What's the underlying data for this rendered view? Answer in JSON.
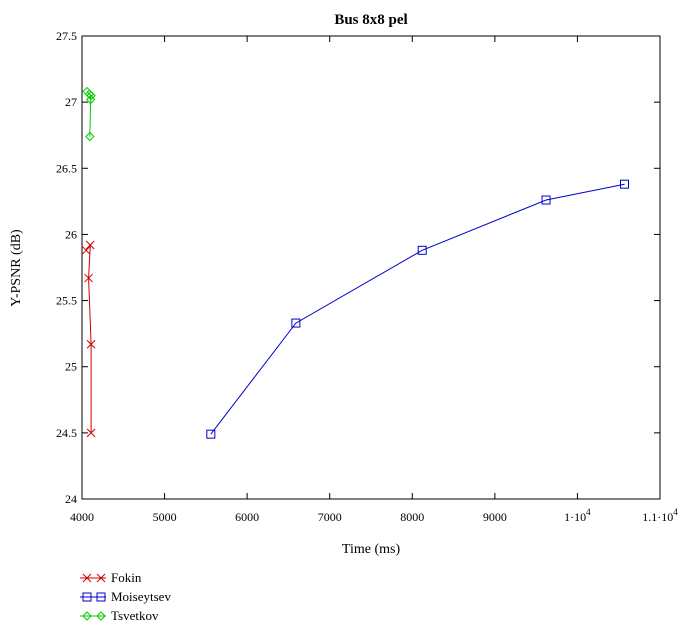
{
  "chart_data": {
    "type": "line",
    "title": "Bus 8x8 pel",
    "xlabel": "Time (ms)",
    "ylabel": "Y-PSNR (dB)",
    "xlim": [
      4000,
      11000
    ],
    "ylim": [
      24,
      27.5
    ],
    "x_ticks": [
      {
        "value": 4000,
        "label": "4000"
      },
      {
        "value": 5000,
        "label": "5000"
      },
      {
        "value": 6000,
        "label": "6000"
      },
      {
        "value": 7000,
        "label": "7000"
      },
      {
        "value": 8000,
        "label": "8000"
      },
      {
        "value": 9000,
        "label": "9000"
      },
      {
        "value": 10000,
        "label": "1·10",
        "sup": "4"
      },
      {
        "value": 11000,
        "label": "1.1·10",
        "sup": "4"
      }
    ],
    "y_ticks": [
      {
        "value": 24,
        "label": "24"
      },
      {
        "value": 24.5,
        "label": "24.5"
      },
      {
        "value": 25,
        "label": "25"
      },
      {
        "value": 25.5,
        "label": "25.5"
      },
      {
        "value": 26,
        "label": "26"
      },
      {
        "value": 26.5,
        "label": "26.5"
      },
      {
        "value": 27,
        "label": "27"
      },
      {
        "value": 27.5,
        "label": "27.5"
      }
    ],
    "grid": false,
    "legend_position": "bottom-left",
    "series": [
      {
        "name": "Fokin",
        "color": "#cc0000",
        "marker": "x",
        "points": [
          [
            4050,
            25.88
          ],
          [
            4100,
            25.92
          ],
          [
            4080,
            25.67
          ],
          [
            4110,
            25.17
          ],
          [
            4110,
            24.5
          ]
        ]
      },
      {
        "name": "Moiseytsev",
        "color": "#0000cc",
        "marker": "square",
        "points": [
          [
            5560,
            24.49
          ],
          [
            6590,
            25.33
          ],
          [
            8120,
            25.88
          ],
          [
            9620,
            26.26
          ],
          [
            10570,
            26.38
          ]
        ]
      },
      {
        "name": "Tsvetkov",
        "color": "#00cc00",
        "marker": "diamond",
        "points": [
          [
            4060,
            27.08
          ],
          [
            4090,
            27.06
          ],
          [
            4110,
            27.05
          ],
          [
            4105,
            27.02
          ],
          [
            4095,
            26.74
          ]
        ]
      }
    ]
  }
}
